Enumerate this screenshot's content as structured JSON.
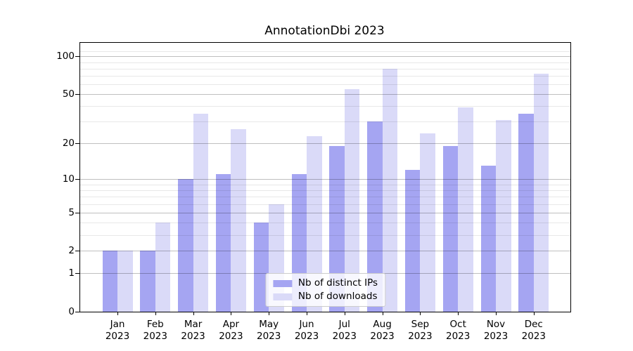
{
  "title": "AnnotationDbi 2023",
  "chart_data": {
    "type": "bar",
    "title": "AnnotationDbi 2023",
    "year": "2023",
    "categories": [
      "Jan",
      "Feb",
      "Mar",
      "Apr",
      "May",
      "Jun",
      "Jul",
      "Aug",
      "Sep",
      "Oct",
      "Nov",
      "Dec"
    ],
    "series": [
      {
        "name": "Nb of distinct IPs",
        "color": "#a5a5f2",
        "values": [
          2,
          2,
          10,
          11,
          4,
          11,
          19,
          30,
          12,
          19,
          13,
          35
        ]
      },
      {
        "name": "Nb of downloads",
        "color": "#dadaf8",
        "values": [
          2,
          4,
          35,
          26,
          6,
          23,
          55,
          80,
          24,
          39,
          31,
          73
        ]
      }
    ],
    "xlabel": "",
    "ylabel": "",
    "yscale": "log1p",
    "ylim": [
      0,
      128
    ],
    "yticks_major": [
      0,
      1,
      2,
      5,
      10,
      20,
      50,
      100
    ],
    "yticks_minor": [
      3,
      4,
      6,
      7,
      8,
      9,
      30,
      40,
      60,
      70,
      80,
      90,
      110
    ],
    "grid": true,
    "legend_position": "lower center",
    "legend": [
      "Nb of distinct IPs",
      "Nb of downloads"
    ]
  },
  "colors": {
    "background": "#ffffff",
    "spine": "#000000",
    "distinct_ips_bar": "#a5a5f2",
    "downloads_bar": "#dadaf8",
    "grid_major": "rgba(0,0,0,0.25)",
    "grid_minor": "rgba(0,0,0,0.09)"
  }
}
